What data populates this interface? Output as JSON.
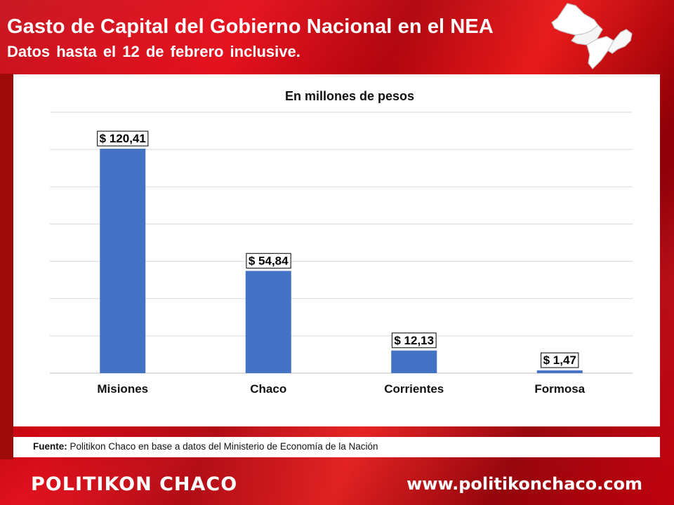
{
  "header": {
    "title": "Gasto de Capital del Gobierno Nacional en el NEA",
    "subtitle": "Datos hasta el 12 de febrero inclusive."
  },
  "map_icon": "nea-region-map-icon",
  "chart_data": {
    "type": "bar",
    "title": "En millones de pesos",
    "categories": [
      "Misiones",
      "Chaco",
      "Corrientes",
      "Formosa"
    ],
    "values": [
      120.41,
      54.84,
      12.13,
      1.47
    ],
    "data_labels": [
      "$ 120,41",
      "$ 54,84",
      "$ 12,13",
      "$ 1,47"
    ],
    "ylim": [
      0,
      140
    ],
    "grid": true,
    "bar_color": "#4472c4",
    "xlabel": "",
    "ylabel": ""
  },
  "source": {
    "label": "Fuente:",
    "text": " Politikon Chaco en base a datos del Ministerio de Economía de la Nación"
  },
  "footer": {
    "brand": "POLITIKON CHACO",
    "url": "www.politikonchaco.com"
  },
  "colors": {
    "brand_red": "#e30613",
    "bar_blue": "#4472c4"
  }
}
